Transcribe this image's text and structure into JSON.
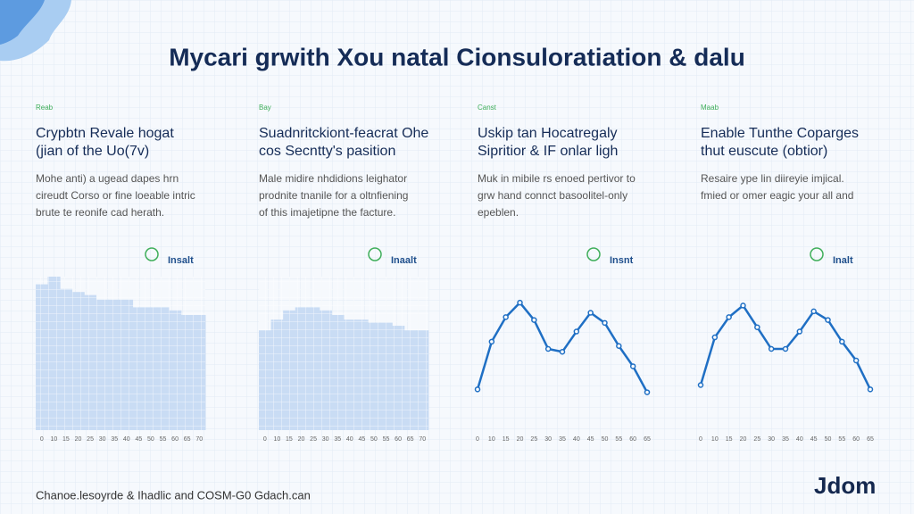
{
  "title": "Mycari grwith Xou natal Cionsuloratiation & dalu",
  "columns": [
    {
      "label": "Reab",
      "heading": [
        "Crypbtn Revale hogat",
        "(jian of the Uo(7v)"
      ],
      "body": [
        "Mohe anti) a ugead dapes hrn",
        "cireudt Corso or fine loeable intric",
        "brute te reonife cad herath."
      ],
      "tag": "Insalt"
    },
    {
      "label": "Bay",
      "heading": [
        "Suadnritckiont-feacrat Ohe",
        "cos Secntty's pasition"
      ],
      "body": [
        "Male midire nhdidions leighator",
        "prodnite tnanile for a oltnfiening",
        "of this imajetipne the facture."
      ],
      "tag": "Inaalt"
    },
    {
      "label": "Canst",
      "heading": [
        "Uskip tan Hocatregaly",
        "Sipritior & IF onlar ligh"
      ],
      "body": [
        "Muk in mibile rs enoed pertivor to",
        "grw hand connct basoolitel-only",
        "epeblen."
      ],
      "tag": "Insnt"
    },
    {
      "label": "Maab",
      "heading": [
        "Enable Tunthe Coparges",
        "thut euscute (obtior)"
      ],
      "body": [
        "Resaire ype lin diireyie imjical.",
        "fmied or omer eagic your all and"
      ],
      "tag": "Inalt"
    }
  ],
  "chart_data": [
    {
      "type": "bar",
      "color": "#c9dcf4",
      "ylim": [
        0,
        100
      ],
      "categories": [
        "0",
        "10",
        "15",
        "20",
        "25",
        "30",
        "35",
        "40",
        "45",
        "50",
        "55",
        "60",
        "65",
        "70"
      ],
      "values": [
        95,
        100,
        92,
        90,
        88,
        85,
        85,
        85,
        80,
        80,
        80,
        78,
        75,
        75
      ]
    },
    {
      "type": "bar",
      "color": "#c9dcf4",
      "ylim": [
        0,
        100
      ],
      "categories": [
        "0",
        "10",
        "15",
        "20",
        "25",
        "30",
        "35",
        "40",
        "45",
        "50",
        "55",
        "60",
        "65",
        "70"
      ],
      "values": [
        65,
        72,
        78,
        80,
        80,
        78,
        75,
        72,
        72,
        70,
        70,
        68,
        65,
        65
      ]
    },
    {
      "type": "line",
      "color": "#1f6fc4",
      "ylim": [
        0,
        100
      ],
      "categories": [
        "0",
        "10",
        "15",
        "20",
        "25",
        "30",
        "35",
        "40",
        "45",
        "50",
        "55",
        "60",
        "65"
      ],
      "values": [
        22,
        55,
        72,
        82,
        70,
        50,
        48,
        62,
        75,
        68,
        52,
        38,
        20
      ]
    },
    {
      "type": "line",
      "color": "#1f6fc4",
      "ylim": [
        0,
        100
      ],
      "categories": [
        "0",
        "10",
        "15",
        "20",
        "25",
        "30",
        "35",
        "40",
        "45",
        "50",
        "55",
        "60",
        "65"
      ],
      "values": [
        25,
        58,
        72,
        80,
        65,
        50,
        50,
        62,
        76,
        70,
        55,
        42,
        22
      ]
    }
  ],
  "footer": "Chanoe.lesoyrde & Ihadlic and COSM-G0 Gdach.can",
  "logo": "Jdom"
}
